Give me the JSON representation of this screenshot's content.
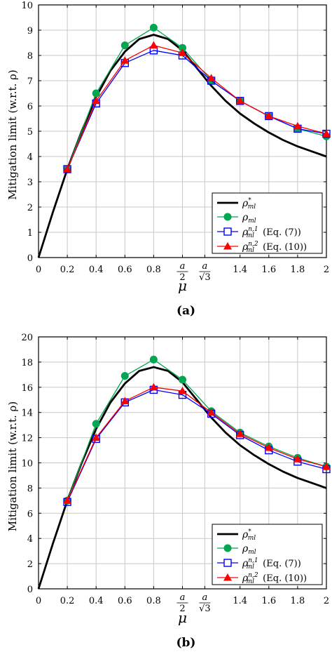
{
  "chart_data": [
    {
      "type": "line",
      "panel_label": "(a)",
      "xlabel": "μ",
      "ylabel": "Mitigation limit (w.r.t. ρ)",
      "xlim": [
        0,
        2
      ],
      "ylim": [
        0,
        10
      ],
      "x_ticks": [
        {
          "value": 0,
          "label": "0"
        },
        {
          "value": 0.2,
          "label": "0.2"
        },
        {
          "value": 0.4,
          "label": "0.4"
        },
        {
          "value": 0.6,
          "label": "0.6"
        },
        {
          "value": 0.8,
          "label": "0.8"
        },
        {
          "value": 1.0,
          "label": "a/2"
        },
        {
          "value": 1.155,
          "label": "a/√3"
        },
        {
          "value": 1.4,
          "label": "1.4"
        },
        {
          "value": 1.6,
          "label": "1.6"
        },
        {
          "value": 1.8,
          "label": "1.8"
        },
        {
          "value": 2.0,
          "label": "2"
        }
      ],
      "y_ticks": [
        0,
        1,
        2,
        3,
        4,
        5,
        6,
        7,
        8,
        9,
        10
      ],
      "grid": true,
      "legend_position": "bottom-right",
      "series": [
        {
          "name": "ρ*_ml",
          "color": "#000000",
          "marker": "none",
          "x": [
            0,
            0.1,
            0.2,
            0.3,
            0.4,
            0.5,
            0.6,
            0.7,
            0.8,
            0.9,
            1.0,
            1.1,
            1.2,
            1.3,
            1.4,
            1.5,
            1.6,
            1.7,
            1.8,
            1.9,
            2.0
          ],
          "y": [
            0,
            1.8,
            3.5,
            5.0,
            6.35,
            7.4,
            8.15,
            8.65,
            8.82,
            8.65,
            8.2,
            7.5,
            6.8,
            6.2,
            5.7,
            5.3,
            4.95,
            4.65,
            4.4,
            4.2,
            4.0
          ]
        },
        {
          "name": "ρ_ml",
          "color": "#00a651",
          "marker": "circle",
          "x": [
            0.2,
            0.4,
            0.6,
            0.8,
            1.0,
            1.2,
            1.4,
            1.6,
            1.8,
            2.0
          ],
          "y": [
            3.5,
            6.5,
            8.4,
            9.1,
            8.3,
            7.0,
            6.2,
            5.6,
            5.1,
            4.8
          ]
        },
        {
          "name": "ρ^{n,1}_ml (Eq. (7))",
          "color": "#0000ff",
          "marker": "square",
          "x": [
            0.2,
            0.4,
            0.6,
            0.8,
            1.0,
            1.2,
            1.4,
            1.6,
            1.8,
            2.0
          ],
          "y": [
            3.5,
            6.1,
            7.7,
            8.2,
            8.0,
            7.0,
            6.2,
            5.6,
            5.1,
            4.9
          ]
        },
        {
          "name": "ρ^{n,2}_ml (Eq. (10))",
          "color": "#ff0000",
          "marker": "triangle",
          "x": [
            0.2,
            0.4,
            0.6,
            0.8,
            1.0,
            1.2,
            1.4,
            1.6,
            1.8,
            2.0
          ],
          "y": [
            3.5,
            6.2,
            7.8,
            8.4,
            8.1,
            7.1,
            6.2,
            5.6,
            5.2,
            4.9
          ]
        }
      ]
    },
    {
      "type": "line",
      "panel_label": "(b)",
      "xlabel": "μ",
      "ylabel": "Mitigation limit (w.r.t. ρ)",
      "xlim": [
        0,
        2
      ],
      "ylim": [
        0,
        20
      ],
      "x_ticks": [
        {
          "value": 0,
          "label": "0"
        },
        {
          "value": 0.2,
          "label": "0.2"
        },
        {
          "value": 0.4,
          "label": "0.4"
        },
        {
          "value": 0.6,
          "label": "0.6"
        },
        {
          "value": 0.8,
          "label": "0.8"
        },
        {
          "value": 1.0,
          "label": "a/2"
        },
        {
          "value": 1.155,
          "label": "a/√3"
        },
        {
          "value": 1.4,
          "label": "1.4"
        },
        {
          "value": 1.6,
          "label": "1.6"
        },
        {
          "value": 1.8,
          "label": "1.8"
        },
        {
          "value": 2.0,
          "label": "2"
        }
      ],
      "y_ticks": [
        0,
        2,
        4,
        6,
        8,
        10,
        12,
        14,
        16,
        18,
        20
      ],
      "grid": true,
      "legend_position": "bottom-right",
      "series": [
        {
          "name": "ρ*_ml",
          "color": "#000000",
          "marker": "none",
          "x": [
            0,
            0.1,
            0.2,
            0.3,
            0.4,
            0.5,
            0.6,
            0.7,
            0.8,
            0.9,
            1.0,
            1.1,
            1.2,
            1.3,
            1.4,
            1.5,
            1.6,
            1.7,
            1.8,
            1.9,
            2.0
          ],
          "y": [
            0,
            3.6,
            7.0,
            10.0,
            12.7,
            14.8,
            16.3,
            17.3,
            17.6,
            17.3,
            16.4,
            15.0,
            13.6,
            12.4,
            11.4,
            10.6,
            9.9,
            9.3,
            8.8,
            8.4,
            8.0
          ]
        },
        {
          "name": "ρ_ml",
          "color": "#00a651",
          "marker": "circle",
          "x": [
            0.2,
            0.4,
            0.6,
            0.8,
            1.0,
            1.2,
            1.4,
            1.6,
            1.8,
            2.0
          ],
          "y": [
            7.0,
            13.1,
            16.9,
            18.2,
            16.6,
            14.1,
            12.4,
            11.3,
            10.4,
            9.7
          ]
        },
        {
          "name": "ρ^{n,1}_ml (Eq. (7))",
          "color": "#0000ff",
          "marker": "square",
          "x": [
            0.2,
            0.4,
            0.6,
            0.8,
            1.0,
            1.2,
            1.4,
            1.6,
            1.8,
            2.0
          ],
          "y": [
            6.9,
            11.9,
            14.8,
            15.8,
            15.4,
            13.9,
            12.2,
            11.0,
            10.1,
            9.5
          ]
        },
        {
          "name": "ρ^{n,2}_ml (Eq. (10))",
          "color": "#ff0000",
          "marker": "triangle",
          "x": [
            0.2,
            0.4,
            0.6,
            0.8,
            1.0,
            1.2,
            1.4,
            1.6,
            1.8,
            2.0
          ],
          "y": [
            7.0,
            12.0,
            14.9,
            16.0,
            15.7,
            14.0,
            12.3,
            11.2,
            10.3,
            9.7
          ]
        }
      ]
    }
  ],
  "legend_labels": {
    "rho_star_base": "ρ",
    "rho_star_sup": "*",
    "rho_base": "ρ",
    "ml_sub": "ml",
    "n1_sup": "n,1",
    "n2_sup": "n,2",
    "eq7": "(Eq. (7))",
    "eq10": "(Eq. (10))"
  },
  "tick_parts": {
    "a": "a",
    "two": "2",
    "sqrt3": "√3"
  }
}
